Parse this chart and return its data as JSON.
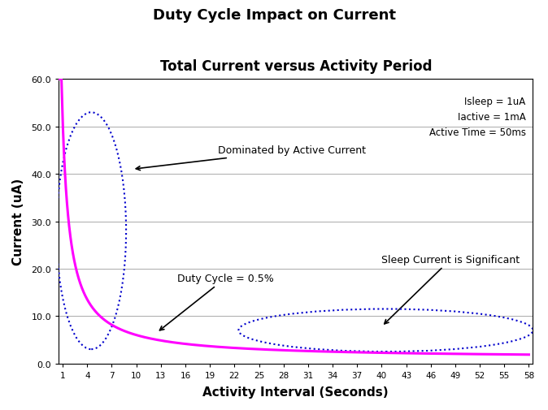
{
  "main_title": "Duty Cycle Impact on Current",
  "sub_title": "Total Current versus Activity Period",
  "xlabel": "Activity Interval (Seconds)",
  "ylabel": "Current (uA)",
  "ylim": [
    0,
    60
  ],
  "xlim": [
    0.5,
    58.5
  ],
  "yticks": [
    0,
    10,
    20,
    30,
    40,
    50,
    60
  ],
  "ytick_labels": [
    "0.0",
    "10.0",
    "20.0",
    "30.0",
    "40.0",
    "50.0",
    "60.0"
  ],
  "xticks": [
    1,
    4,
    7,
    10,
    13,
    16,
    19,
    22,
    25,
    28,
    31,
    34,
    37,
    40,
    43,
    46,
    49,
    52,
    55,
    58
  ],
  "Isleep_uA": 1,
  "Iactive_mA": 1,
  "active_time_ms": 50,
  "curve_color": "#FF00FF",
  "ellipse_color": "#0000CC",
  "params_text": "Isleep = 1uA\nIactive = 1mA\nActive Time = 50ms",
  "annotation1_text": "Dominated by Active Current",
  "annotation2_text": "Duty Cycle = 0.5%",
  "annotation3_text": "Sleep Current is Significant",
  "bg_color": "#FFFFFF",
  "grid_color": "#AAAAAA"
}
